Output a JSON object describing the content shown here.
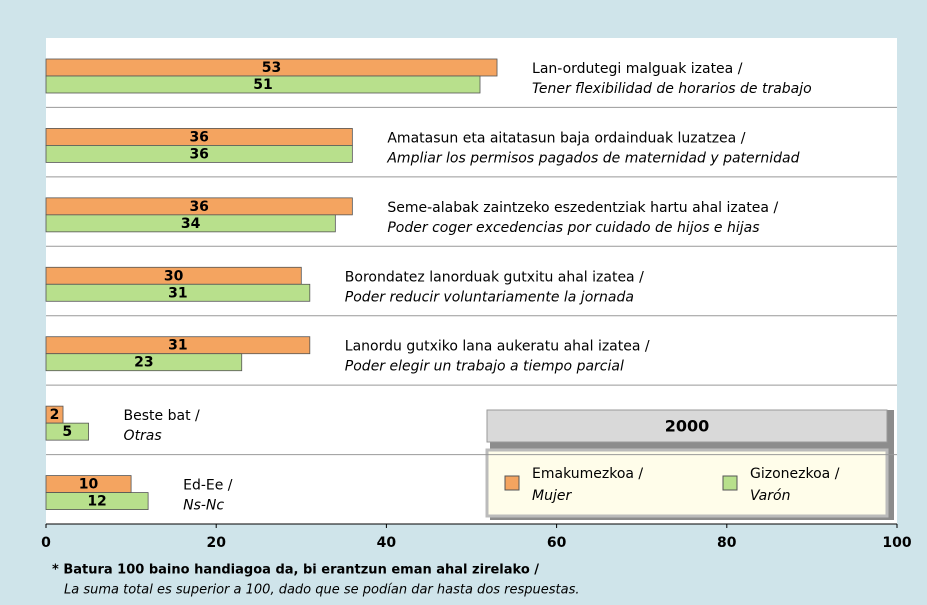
{
  "chart_data": {
    "type": "bar",
    "categories": [
      [
        "Lan-ordutegi malguak izatea /",
        "Tener flexibilidad de horarios de trabajo"
      ],
      [
        "Amatasun eta aitatasun baja ordainduak luzatzea /",
        "Ampliar los permisos pagados de maternidad y paternidad"
      ],
      [
        "Seme-alabak zaintzeko eszedentziak hartu ahal izatea /",
        "Poder coger excedencias por cuidado de hijos e hijas"
      ],
      [
        "Borondatez lanorduak gutxitu ahal izatea /",
        "Poder reducir voluntariamente la jornada"
      ],
      [
        "Lanordu gutxiko lana aukeratu ahal izatea /",
        "Poder elegir un trabajo a tiempo parcial"
      ],
      [
        "Beste bat /",
        "Otras"
      ],
      [
        "Ed-Ee /",
        "Ns-Nc"
      ]
    ],
    "series": [
      {
        "name": [
          "Emakumezkoa /",
          "Mujer"
        ],
        "color": "#f4a460",
        "values": [
          53,
          36,
          36,
          30,
          31,
          2,
          10
        ]
      },
      {
        "name": [
          "Gizonezkoa /",
          "Varón"
        ],
        "color": "#b8e08c",
        "values": [
          51,
          36,
          34,
          31,
          23,
          5,
          12
        ]
      }
    ],
    "legend_title": "2000",
    "xlim": [
      0,
      100
    ],
    "xticks": [
      0,
      20,
      40,
      60,
      80,
      100
    ],
    "footnote": [
      "* Batura 100 baino handiagoa da, bi erantzun eman ahal zirelako /",
      "La suma total es superior a 100, dado que se podían dar hasta dos respuestas."
    ]
  }
}
